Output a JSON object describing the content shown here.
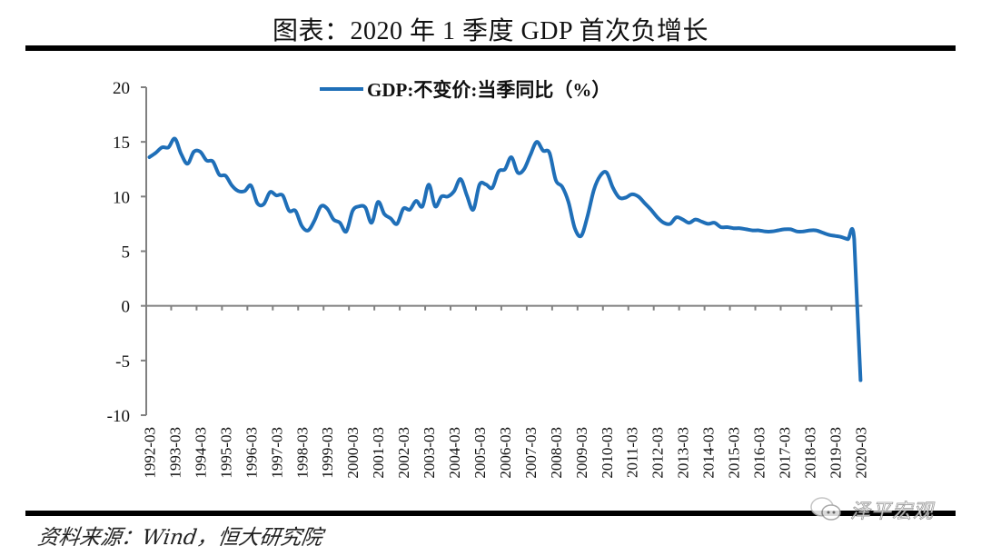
{
  "title": "图表：2020 年 1 季度 GDP 首次负增长",
  "source": "资料来源：Wind，恒大研究院",
  "watermark": "泽平宏观",
  "colors": {
    "line": "#1f6fb8",
    "axis": "#808080",
    "text": "#111111",
    "rule": "#000000"
  },
  "chart_data": {
    "type": "line",
    "title": "图表：2020 年 1 季度 GDP 首次负增长",
    "xlabel": "",
    "ylabel": "",
    "ylim": [
      -10,
      20
    ],
    "yticks": [
      20,
      15,
      10,
      5,
      0,
      -5,
      -10
    ],
    "grid": false,
    "legend": {
      "position": "top-center",
      "entries": [
        "GDP:不变价:当季同比（%）"
      ]
    },
    "xtick_labels": [
      "1992-03",
      "1993-03",
      "1994-03",
      "1995-03",
      "1996-03",
      "1997-03",
      "1998-03",
      "1999-03",
      "2000-03",
      "2001-03",
      "2002-03",
      "2003-03",
      "2004-03",
      "2005-03",
      "2006-03",
      "2007-03",
      "2008-03",
      "2009-03",
      "2010-03",
      "2011-03",
      "2012-03",
      "2013-03",
      "2014-03",
      "2015-03",
      "2016-03",
      "2017-03",
      "2018-03",
      "2019-03",
      "2020-03"
    ],
    "x_start": "1992-03",
    "x_frequency": "quarterly",
    "series": [
      {
        "name": "GDP:不变价:当季同比（%）",
        "values": [
          13.6,
          14.0,
          14.5,
          14.5,
          15.3,
          13.9,
          13.0,
          14.1,
          14.1,
          13.3,
          13.2,
          12.0,
          11.9,
          11.0,
          10.5,
          10.5,
          11.0,
          9.4,
          9.3,
          10.4,
          10.1,
          10.1,
          8.7,
          8.7,
          7.3,
          6.9,
          7.8,
          9.1,
          8.9,
          7.9,
          7.6,
          6.8,
          8.7,
          9.1,
          9.0,
          7.6,
          9.5,
          8.4,
          8.0,
          7.5,
          8.9,
          8.8,
          9.6,
          9.1,
          11.1,
          9.1,
          10.0,
          10.0,
          10.5,
          11.6,
          10.1,
          8.8,
          11.1,
          11.1,
          10.8,
          12.3,
          12.5,
          13.6,
          12.2,
          12.5,
          13.8,
          15.0,
          14.2,
          14.0,
          11.5,
          10.9,
          9.5,
          7.1,
          6.4,
          8.2,
          10.6,
          11.9,
          12.2,
          10.8,
          9.9,
          9.9,
          10.2,
          10.0,
          9.4,
          8.8,
          8.1,
          7.6,
          7.5,
          8.1,
          7.9,
          7.6,
          7.9,
          7.7,
          7.5,
          7.6,
          7.2,
          7.2,
          7.1,
          7.1,
          7.0,
          6.9,
          6.9,
          6.8,
          6.8,
          6.9,
          7.0,
          7.0,
          6.8,
          6.8,
          6.9,
          6.9,
          6.7,
          6.5,
          6.4,
          6.3,
          6.1,
          6.1,
          -6.8
        ]
      }
    ]
  }
}
